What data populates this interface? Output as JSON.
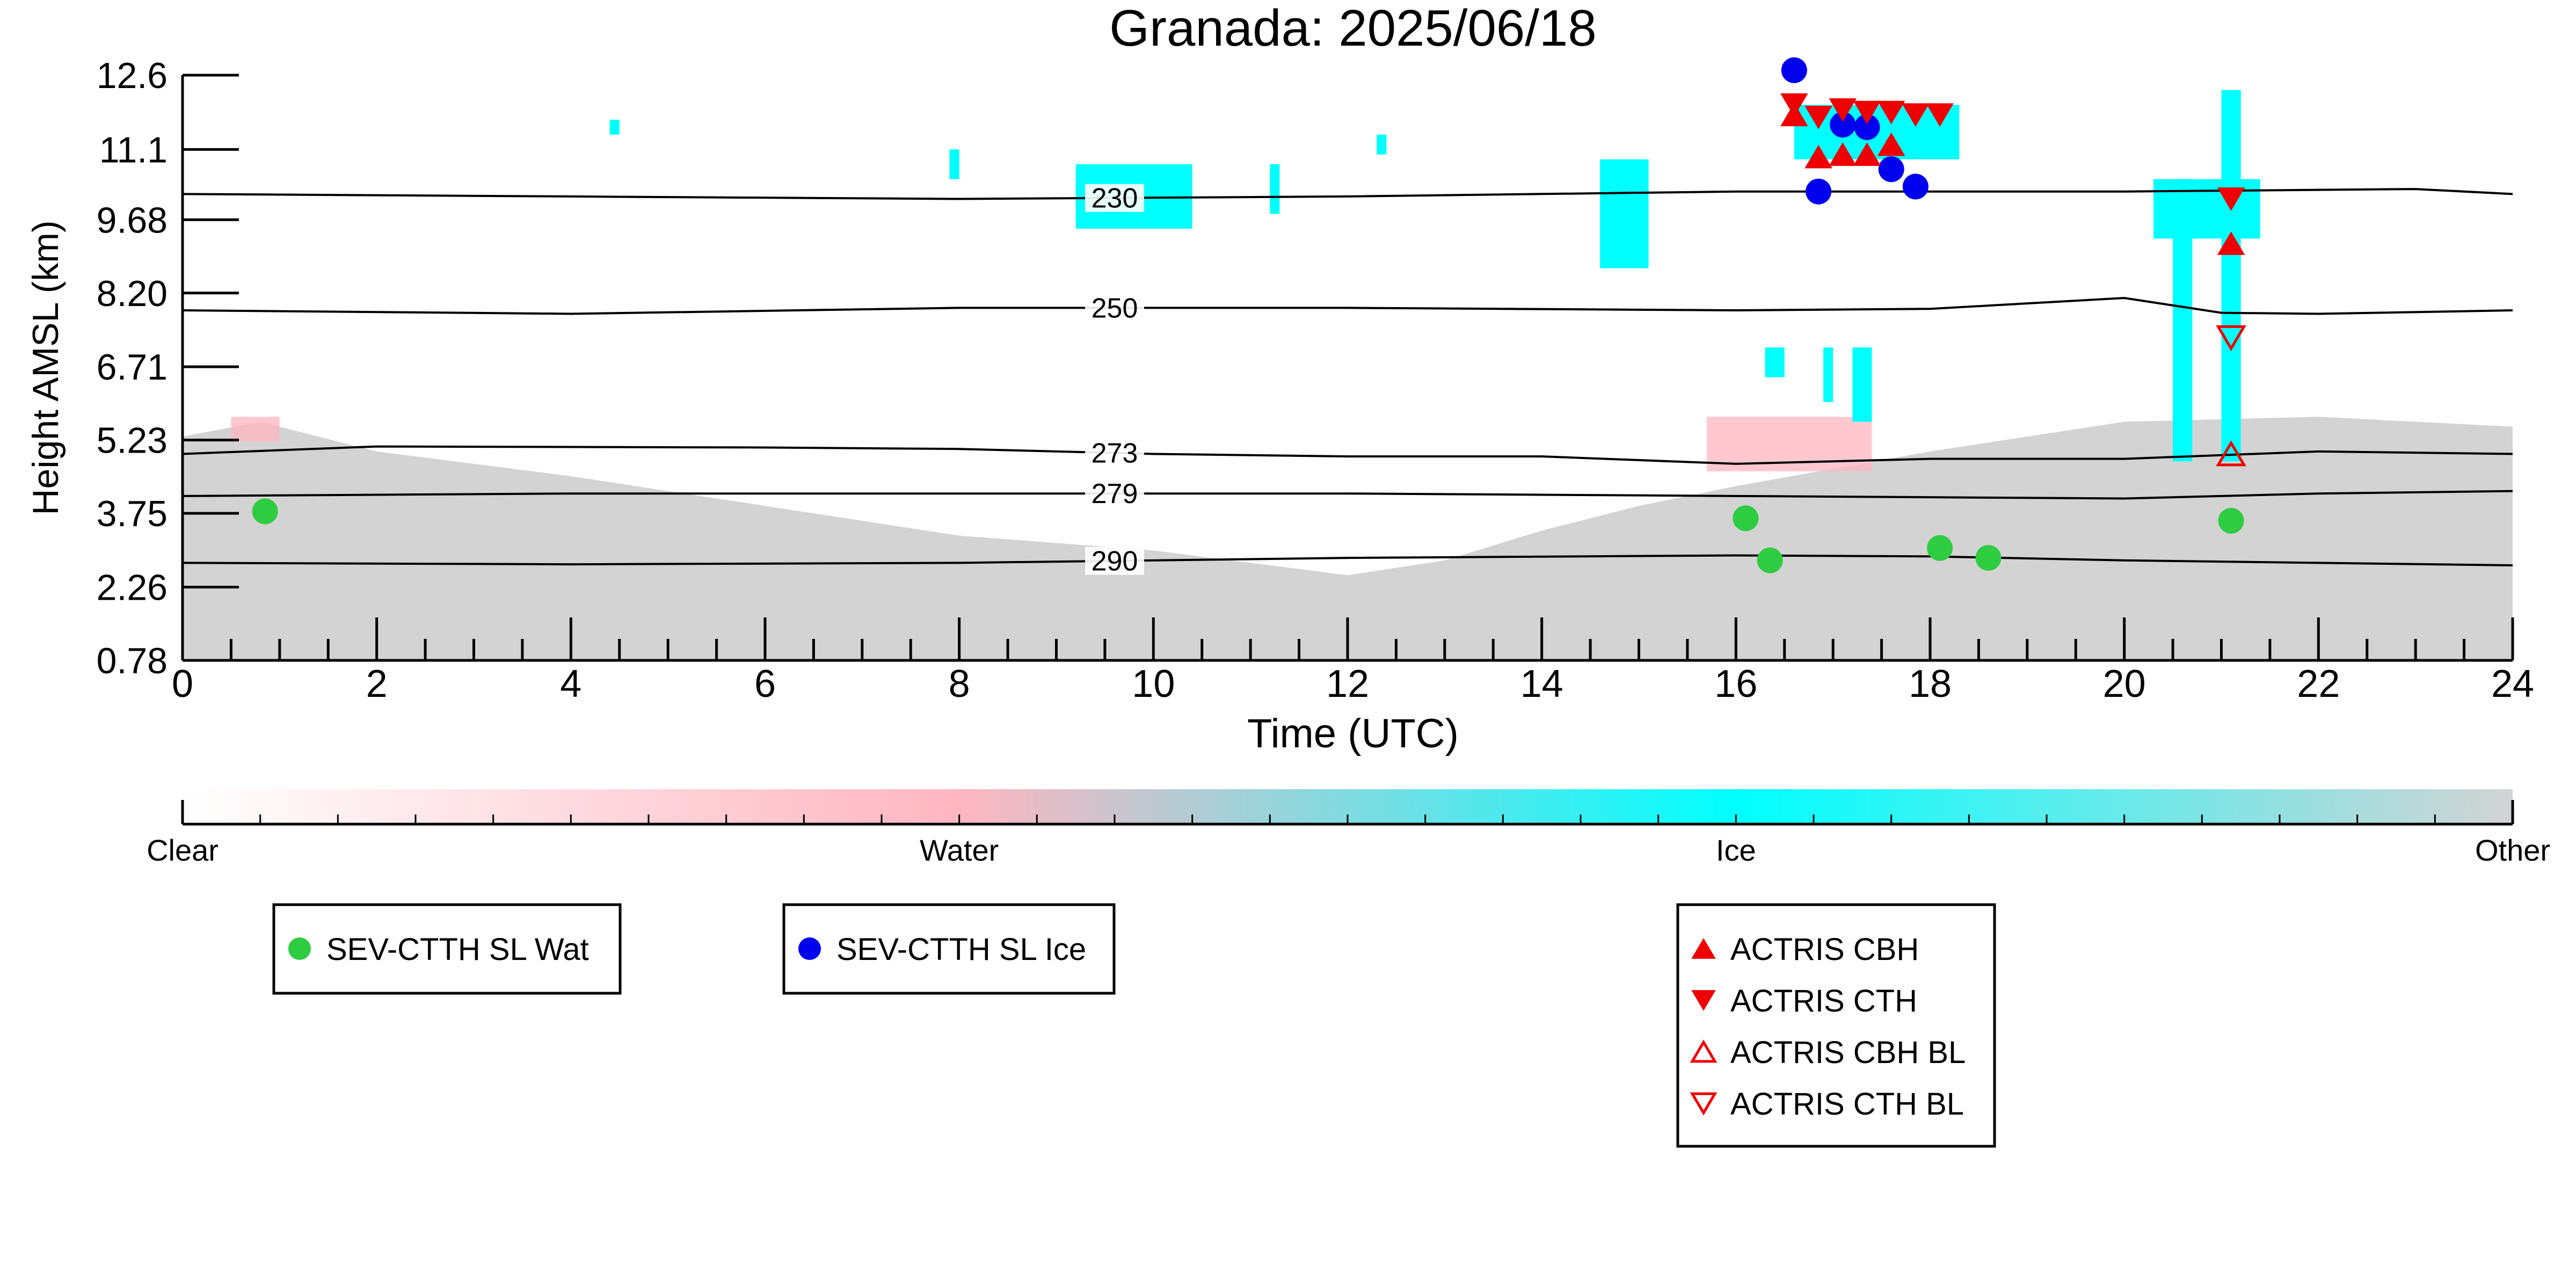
{
  "chart_data": {
    "type": "scatter",
    "title": "Granada: 2025/06/18",
    "xlabel": "Time (UTC)",
    "ylabel": "Height AMSL (km)",
    "xlim": [
      0,
      24
    ],
    "ylim": [
      0.78,
      12.6
    ],
    "x_ticks": [
      "0",
      "2",
      "4",
      "6",
      "8",
      "10",
      "12",
      "14",
      "16",
      "18",
      "20",
      "22",
      "24"
    ],
    "y_ticks": [
      "0.78",
      "2.26",
      "3.75",
      "5.23",
      "6.71",
      "8.20",
      "9.68",
      "11.1",
      "12.6"
    ],
    "background": {
      "description_classes": [
        "Clear",
        "Water",
        "Ice",
        "Other"
      ],
      "other_top_km": [
        [
          0,
          5.3
        ],
        [
          0.8,
          5.6
        ],
        [
          2,
          5.0
        ],
        [
          4,
          4.5
        ],
        [
          6,
          3.9
        ],
        [
          8,
          3.3
        ],
        [
          10,
          3.0
        ],
        [
          12,
          2.5
        ],
        [
          13,
          2.8
        ],
        [
          14,
          3.4
        ],
        [
          15,
          3.9
        ],
        [
          16,
          4.3
        ],
        [
          18,
          5.0
        ],
        [
          20,
          5.6
        ],
        [
          22,
          5.7
        ],
        [
          24,
          5.5
        ]
      ],
      "water_regions": [
        {
          "x": [
            0.5,
            1.0
          ],
          "y": [
            5.2,
            5.7
          ]
        },
        {
          "x": [
            15.7,
            17.4
          ],
          "y": [
            4.6,
            5.7
          ]
        }
      ],
      "ice_regions": [
        {
          "x": [
            4.4,
            4.5
          ],
          "y": [
            11.4,
            11.7
          ]
        },
        {
          "x": [
            7.9,
            8.0
          ],
          "y": [
            10.5,
            11.1
          ]
        },
        {
          "x": [
            9.2,
            10.4
          ],
          "y": [
            9.5,
            10.8
          ]
        },
        {
          "x": [
            11.2,
            11.3
          ],
          "y": [
            9.8,
            10.8
          ]
        },
        {
          "x": [
            12.3,
            12.4
          ],
          "y": [
            11.0,
            11.4
          ]
        },
        {
          "x": [
            14.6,
            15.1
          ],
          "y": [
            8.7,
            10.9
          ]
        },
        {
          "x": [
            16.3,
            16.5
          ],
          "y": [
            6.5,
            7.1
          ]
        },
        {
          "x": [
            16.9,
            17.0
          ],
          "y": [
            6.0,
            7.1
          ]
        },
        {
          "x": [
            17.2,
            17.4
          ],
          "y": [
            5.6,
            7.1
          ]
        },
        {
          "x": [
            16.6,
            18.3
          ],
          "y": [
            10.9,
            12.0
          ]
        },
        {
          "x": [
            20.5,
            20.7
          ],
          "y": [
            4.8,
            10.5
          ]
        },
        {
          "x": [
            20.3,
            21.4
          ],
          "y": [
            9.3,
            10.5
          ]
        },
        {
          "x": [
            21.0,
            21.2
          ],
          "y": [
            4.8,
            12.3
          ]
        }
      ]
    },
    "isotherms": [
      {
        "label": "230",
        "points": [
          [
            0,
            10.2
          ],
          [
            4,
            10.15
          ],
          [
            8,
            10.1
          ],
          [
            12,
            10.15
          ],
          [
            16,
            10.25
          ],
          [
            20,
            10.25
          ],
          [
            23,
            10.3
          ],
          [
            24,
            10.2
          ]
        ]
      },
      {
        "label": "250",
        "points": [
          [
            0,
            7.85
          ],
          [
            4,
            7.78
          ],
          [
            8,
            7.9
          ],
          [
            12,
            7.9
          ],
          [
            16,
            7.85
          ],
          [
            18,
            7.88
          ],
          [
            20,
            8.1
          ],
          [
            21,
            7.8
          ],
          [
            22,
            7.78
          ],
          [
            24,
            7.85
          ]
        ]
      },
      {
        "label": "273",
        "points": [
          [
            0,
            4.95
          ],
          [
            2,
            5.1
          ],
          [
            6,
            5.08
          ],
          [
            8,
            5.05
          ],
          [
            10,
            4.95
          ],
          [
            12,
            4.9
          ],
          [
            14,
            4.9
          ],
          [
            16,
            4.75
          ],
          [
            18,
            4.85
          ],
          [
            20,
            4.85
          ],
          [
            22,
            5.0
          ],
          [
            24,
            4.95
          ]
        ]
      },
      {
        "label": "279",
        "points": [
          [
            0,
            4.1
          ],
          [
            4,
            4.15
          ],
          [
            8,
            4.15
          ],
          [
            12,
            4.15
          ],
          [
            16,
            4.1
          ],
          [
            20,
            4.05
          ],
          [
            22,
            4.15
          ],
          [
            24,
            4.2
          ]
        ]
      },
      {
        "label": "290",
        "points": [
          [
            0,
            2.75
          ],
          [
            4,
            2.72
          ],
          [
            8,
            2.75
          ],
          [
            12,
            2.85
          ],
          [
            16,
            2.9
          ],
          [
            18,
            2.88
          ],
          [
            20,
            2.8
          ],
          [
            24,
            2.7
          ]
        ]
      }
    ],
    "series": [
      {
        "name": "SEV-CTTH SL Wat",
        "marker": "circle",
        "color": "#2ecc40",
        "points": [
          [
            0.85,
            3.79
          ],
          [
            16.1,
            3.65
          ],
          [
            16.35,
            2.8
          ],
          [
            18.1,
            3.05
          ],
          [
            18.6,
            2.85
          ],
          [
            21.1,
            3.6
          ]
        ]
      },
      {
        "name": "SEV-CTTH SL Ice",
        "marker": "circle",
        "color": "#0000ee",
        "points": [
          [
            16.6,
            12.7
          ],
          [
            16.85,
            10.25
          ],
          [
            17.1,
            11.6
          ],
          [
            17.35,
            11.55
          ],
          [
            17.6,
            10.7
          ],
          [
            17.85,
            10.35
          ]
        ]
      },
      {
        "name": "ACTRIS CBH",
        "marker": "triangle-up",
        "color": "#ee0000",
        "points": [
          [
            16.6,
            11.8
          ],
          [
            16.85,
            10.95
          ],
          [
            17.1,
            11.0
          ],
          [
            17.35,
            11.0
          ],
          [
            17.6,
            11.2
          ],
          [
            21.1,
            9.2
          ]
        ]
      },
      {
        "name": "ACTRIS CTH",
        "marker": "triangle-down",
        "color": "#ee0000",
        "points": [
          [
            16.6,
            12.0
          ],
          [
            16.85,
            11.75
          ],
          [
            17.1,
            11.9
          ],
          [
            17.35,
            11.85
          ],
          [
            17.6,
            11.85
          ],
          [
            17.85,
            11.8
          ],
          [
            18.1,
            11.8
          ],
          [
            21.1,
            10.1
          ]
        ]
      },
      {
        "name": "ACTRIS CBH BL",
        "marker": "triangle-up-open",
        "color": "#ee0000",
        "points": [
          [
            21.1,
            4.95
          ]
        ]
      },
      {
        "name": "ACTRIS CTH BL",
        "marker": "triangle-down-open",
        "color": "#ee0000",
        "points": [
          [
            21.1,
            7.3
          ]
        ]
      }
    ],
    "colorbar": {
      "labels": [
        "Clear",
        "Water",
        "Ice",
        "Other"
      ],
      "colors": [
        "#ffffff",
        "#ffb6c1",
        "#00ffff",
        "#d3d3d3"
      ]
    },
    "legends": [
      {
        "entries": [
          "SEV-CTTH SL Wat"
        ]
      },
      {
        "entries": [
          "SEV-CTTH SL Ice"
        ]
      },
      {
        "entries": [
          "ACTRIS CBH",
          "ACTRIS CTH",
          "ACTRIS CBH BL",
          "ACTRIS CTH BL"
        ]
      }
    ],
    "grid": false
  }
}
